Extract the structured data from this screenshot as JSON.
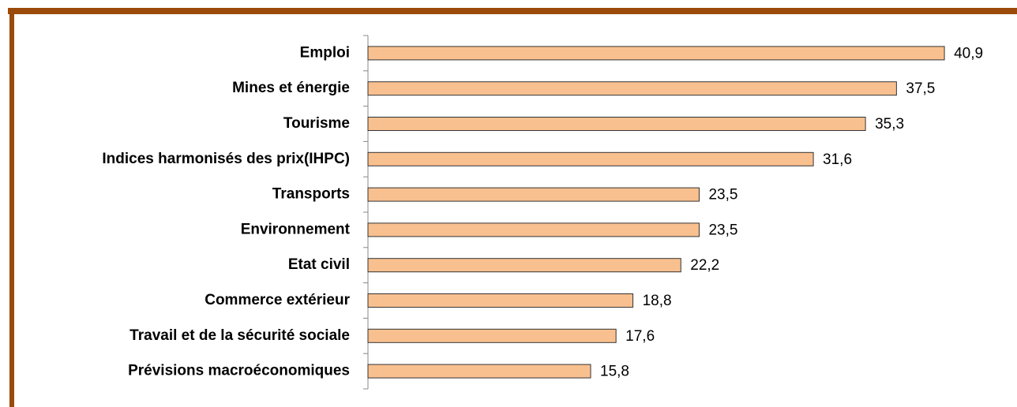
{
  "chart_data": {
    "type": "bar",
    "orientation": "horizontal",
    "categories": [
      "Emploi",
      "Mines et énergie",
      "Tourisme",
      "Indices harmonisés des prix(IHPC)",
      "Transports",
      "Environnement",
      "Etat civil",
      "Commerce extérieur",
      "Travail et de la sécurité sociale",
      "Prévisions macroéconomiques"
    ],
    "values": [
      40.9,
      37.5,
      35.3,
      31.6,
      23.5,
      23.5,
      22.2,
      18.8,
      17.6,
      15.8
    ],
    "value_labels": [
      "40,9",
      "37,5",
      "35,3",
      "31,6",
      "23,5",
      "23,5",
      "22,2",
      "18,8",
      "17,6",
      "15,8"
    ],
    "color": "#f9c08f"
  }
}
